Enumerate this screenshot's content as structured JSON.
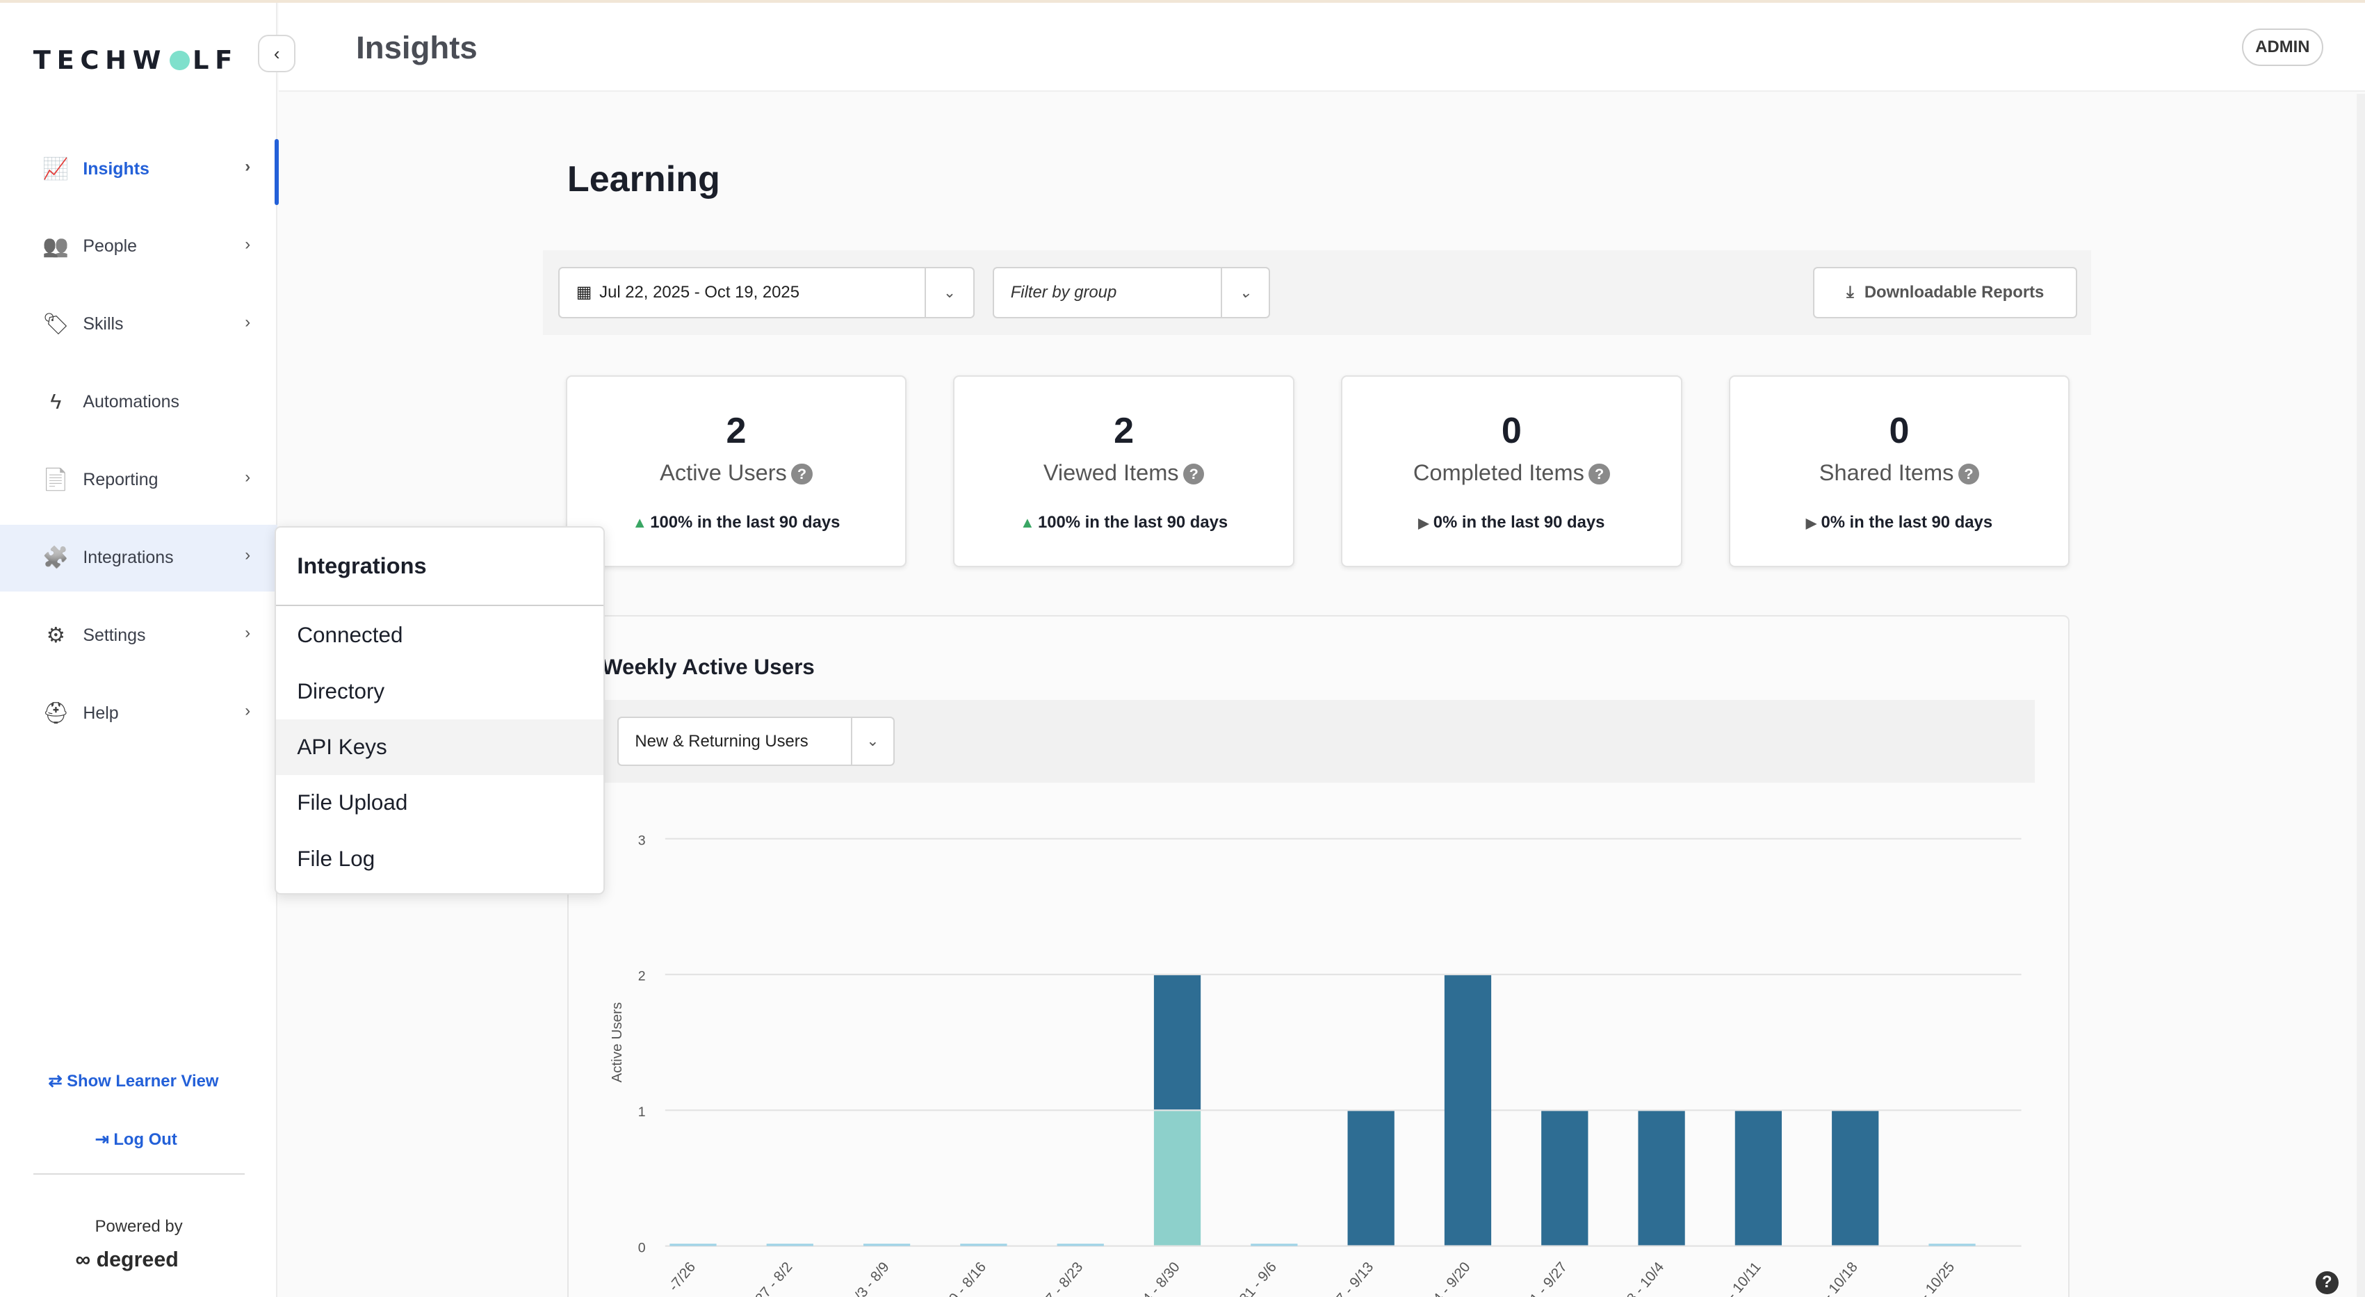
{
  "app": {
    "logo_pre": "TECHW",
    "logo_post": "LF"
  },
  "header": {
    "title": "Insights",
    "role_badge": "ADMIN"
  },
  "sidebar": {
    "items": [
      {
        "label": "Insights",
        "icon": "chart-board-icon",
        "has_chevron": true
      },
      {
        "label": "People",
        "icon": "people-icon",
        "has_chevron": true
      },
      {
        "label": "Skills",
        "icon": "tag-icon",
        "has_chevron": true
      },
      {
        "label": "Automations",
        "icon": "lightning-icon",
        "has_chevron": false
      },
      {
        "label": "Reporting",
        "icon": "report-icon",
        "has_chevron": true
      },
      {
        "label": "Integrations",
        "icon": "puzzle-icon",
        "has_chevron": true
      },
      {
        "label": "Settings",
        "icon": "gear-icon",
        "has_chevron": true
      },
      {
        "label": "Help",
        "icon": "lifebuoy-icon",
        "has_chevron": true
      }
    ],
    "show_learner_view": "Show Learner View",
    "log_out": "Log Out",
    "powered_by": "Powered by",
    "degreed": "degreed"
  },
  "main": {
    "title": "Learning",
    "date_range": "Jul 22, 2025 - Oct 19, 2025",
    "group_filter_placeholder": "Filter by group",
    "download_label": "Downloadable Reports"
  },
  "cards": [
    {
      "value": "2",
      "label": "Active Users",
      "change": "100% in the last 90 days",
      "trend": "up"
    },
    {
      "value": "2",
      "label": "Viewed Items",
      "change": "100% in the last 90 days",
      "trend": "up"
    },
    {
      "value": "0",
      "label": "Completed Items",
      "change": "0% in the last 90 days",
      "trend": "flat"
    },
    {
      "value": "0",
      "label": "Shared Items",
      "change": "0% in the last 90 days",
      "trend": "flat"
    }
  ],
  "panel": {
    "title": "Weekly Active Users",
    "series_select": "New & Returning Users"
  },
  "popup": {
    "title": "Integrations",
    "items": [
      "Connected",
      "Directory",
      "API Keys",
      "File Upload",
      "File Log"
    ],
    "highlighted": "API Keys"
  },
  "chart_data": {
    "type": "bar",
    "stacked": true,
    "ylabel": "Active Users",
    "ylim": [
      0,
      3
    ],
    "yticks": [
      0,
      1,
      2,
      3
    ],
    "categories": [
      "-7/26",
      "27 - 8/2",
      "/3 - 8/9",
      "0 - 8/16",
      "7 - 8/23",
      "4 - 8/30",
      "31 - 9/6",
      "7 - 9/13",
      "4 - 9/20",
      "1 - 9/27",
      "8 - 10/4",
      "- 10/11",
      "- 10/18",
      "- 10/25"
    ],
    "series": [
      {
        "values": [
          0,
          0,
          0,
          0,
          0,
          1,
          0,
          0,
          0,
          0,
          0,
          0,
          0,
          0
        ],
        "color": "#8dd0cb"
      },
      {
        "values": [
          0,
          0,
          0,
          0,
          0,
          1,
          0,
          1,
          2,
          1,
          1,
          1,
          1,
          0
        ],
        "color": "#2e6d93"
      }
    ],
    "grid": true
  }
}
